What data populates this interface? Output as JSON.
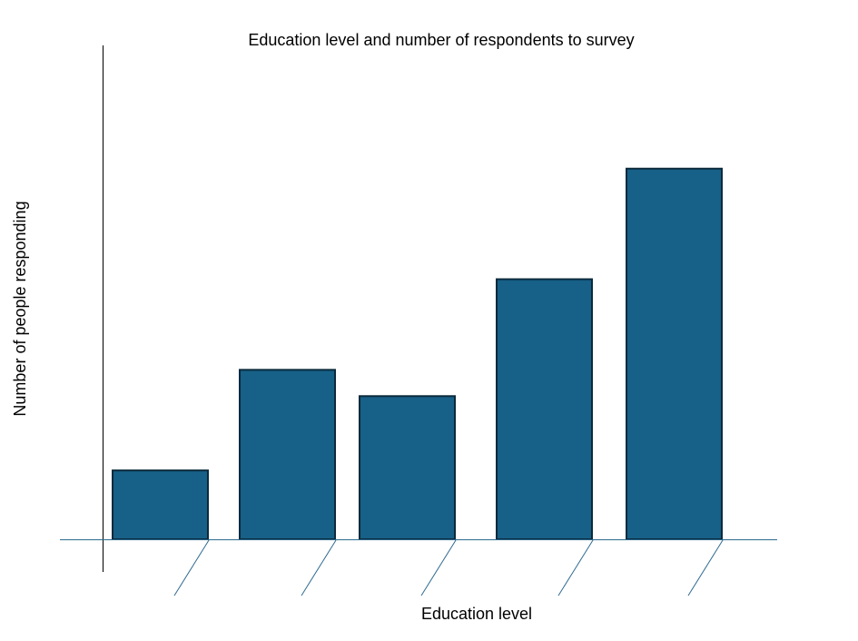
{
  "chart_data": {
    "type": "bar",
    "title": "Education level and number of respondents to survey",
    "xlabel": "Education level",
    "ylabel": "Number of people responding",
    "categories": [
      "",
      "",
      "",
      "",
      ""
    ],
    "values": [
      76,
      187,
      158,
      287,
      409
    ],
    "ylim": [
      0,
      545
    ],
    "grid": false,
    "legend": "none",
    "bar_color": "#176087",
    "bar_edge_color": "#0b2a3c",
    "axis_color": "#2d6a8f"
  }
}
